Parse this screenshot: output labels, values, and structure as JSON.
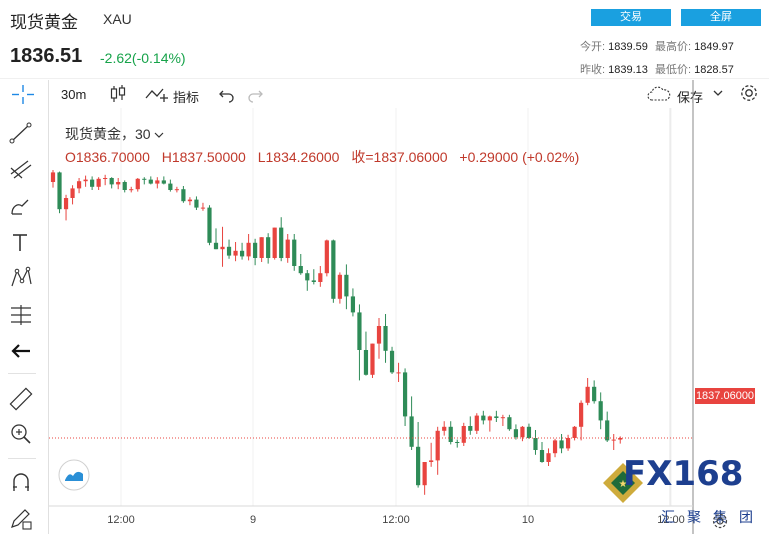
{
  "header": {
    "title": "现货黄金",
    "symbol": "XAU",
    "price": "1836.51",
    "change": "-2.62(-0.14%)",
    "trade_button": "交易",
    "fullscreen_button": "全屏",
    "stats": {
      "open_label": "今开:",
      "open": "1839.59",
      "high_label": "最高价:",
      "high": "1849.97",
      "prev_close_label": "昨收:",
      "prev_close": "1839.13",
      "low_label": "最低价:",
      "low": "1828.57"
    }
  },
  "toolbar": {
    "interval": "30m",
    "indicators_label": "指标",
    "save_label": "保存"
  },
  "sidebar": {
    "icons": [
      "crosshair-icon",
      "trend-line-icon",
      "fib-icon",
      "brush-icon",
      "text-icon",
      "pattern-icon",
      "measure-lines-icon",
      "back-arrow-icon",
      "ruler-icon",
      "zoom-icon",
      "magnet-icon",
      "pencil-lock-icon"
    ]
  },
  "chart_data": {
    "type": "candlestick",
    "title": "现货黄金，30",
    "ohlc": {
      "open": "O1836.70000",
      "high": "H1837.50000",
      "low": "L1834.26000",
      "close": "收=1837.06000",
      "change": "+0.29000 (+0.02%)"
    },
    "last_price_label": "1837.06000",
    "x_tick_labels": [
      "12:00",
      "9",
      "12:00",
      "10",
      "12:00"
    ],
    "colors": {
      "up": "#e8443f",
      "down": "#2e8b57",
      "last_line": "#e8443f"
    },
    "candles_rel": [
      [
        0.0,
        1.5,
        -0.7,
        1.2
      ],
      [
        1.2,
        1.3,
        -3.9,
        -3.4
      ],
      [
        -3.4,
        -1.6,
        -4.8,
        -2.0
      ],
      [
        -2.0,
        -0.4,
        -2.8,
        -0.8
      ],
      [
        -0.8,
        0.5,
        -1.4,
        0.1
      ],
      [
        0.1,
        0.8,
        -0.6,
        0.3
      ],
      [
        0.3,
        0.7,
        -1.0,
        -0.6
      ],
      [
        -0.6,
        0.6,
        -1.0,
        0.4
      ],
      [
        0.4,
        0.9,
        -0.4,
        0.5
      ],
      [
        0.5,
        0.6,
        -0.8,
        -0.3
      ],
      [
        -0.3,
        0.5,
        -0.9,
        0.0
      ],
      [
        0.0,
        0.2,
        -1.3,
        -1.0
      ],
      [
        -1.0,
        -0.6,
        -1.3,
        -0.9
      ],
      [
        -0.9,
        0.5,
        -1.2,
        0.4
      ],
      [
        0.4,
        0.6,
        -0.3,
        0.3
      ],
      [
        0.3,
        0.7,
        -0.3,
        -0.2
      ],
      [
        -0.2,
        0.6,
        -0.8,
        0.2
      ],
      [
        0.2,
        0.7,
        -0.3,
        -0.2
      ],
      [
        -0.2,
        0.3,
        -1.2,
        -1.0
      ],
      [
        -1.0,
        -0.6,
        -1.3,
        -0.9
      ],
      [
        -0.9,
        -0.5,
        -2.6,
        -2.4
      ],
      [
        -2.4,
        -1.9,
        -2.9,
        -2.2
      ],
      [
        -2.2,
        -1.8,
        -3.5,
        -3.2
      ],
      [
        -3.2,
        -2.6,
        -3.6,
        -3.2
      ],
      [
        -3.2,
        -2.9,
        -7.9,
        -7.6
      ],
      [
        -7.6,
        -5.8,
        -8.4,
        -8.4
      ],
      [
        -8.4,
        -5.6,
        -10.6,
        -8.1
      ],
      [
        -8.1,
        -7.2,
        -9.6,
        -9.2
      ],
      [
        -9.2,
        -7.5,
        -9.9,
        -8.6
      ],
      [
        -8.6,
        -7.6,
        -9.7,
        -9.3
      ],
      [
        -9.3,
        -6.5,
        -9.8,
        -7.6
      ],
      [
        -7.6,
        -7.1,
        -10.4,
        -9.5
      ],
      [
        -9.5,
        -6.9,
        -10.0,
        -6.9
      ],
      [
        -6.9,
        -6.4,
        -10.2,
        -9.5
      ],
      [
        -9.5,
        -5.7,
        -9.7,
        -5.7
      ],
      [
        -5.7,
        -4.4,
        -9.9,
        -9.5
      ],
      [
        -9.5,
        -6.5,
        -10.1,
        -7.2
      ],
      [
        -7.2,
        -6.5,
        -11.1,
        -10.5
      ],
      [
        -10.5,
        -9.0,
        -11.6,
        -11.4
      ],
      [
        -11.4,
        -11.0,
        -13.6,
        -12.3
      ],
      [
        -12.3,
        -10.9,
        -12.8,
        -12.5
      ],
      [
        -12.5,
        -10.5,
        -13.1,
        -11.4
      ],
      [
        -11.4,
        -7.2,
        -11.8,
        -7.3
      ],
      [
        -7.3,
        -7.2,
        -15.1,
        -14.6
      ],
      [
        -14.6,
        -11.3,
        -15.2,
        -11.6
      ],
      [
        -11.6,
        -10.3,
        -15.9,
        -14.3
      ],
      [
        -14.3,
        -13.3,
        -16.8,
        -16.3
      ],
      [
        -16.3,
        -15.3,
        -24.8,
        -21.0
      ],
      [
        -21.0,
        -18.7,
        -24.2,
        -24.1
      ],
      [
        -24.1,
        -20.2,
        -24.5,
        -20.2
      ],
      [
        -20.2,
        -17.0,
        -22.1,
        -18.0
      ],
      [
        -18.0,
        -16.5,
        -22.6,
        -21.1
      ],
      [
        -21.1,
        -20.6,
        -24.0,
        -23.8
      ],
      [
        -23.8,
        -22.6,
        -25.0,
        -23.8
      ],
      [
        -23.8,
        -23.3,
        -30.5,
        -29.3
      ],
      [
        -29.3,
        -26.8,
        -33.5,
        -33.1
      ],
      [
        -33.1,
        -30.0,
        -38.2,
        -37.9
      ],
      [
        -37.9,
        -35.0,
        -39.1,
        -35.0
      ],
      [
        -35.0,
        -32.6,
        -35.6,
        -34.8
      ],
      [
        -34.8,
        -30.6,
        -36.6,
        -31.1
      ],
      [
        -31.1,
        -29.9,
        -31.7,
        -30.6
      ],
      [
        -30.6,
        -29.9,
        -32.8,
        -32.5
      ],
      [
        -32.5,
        -32.2,
        -33.2,
        -32.6
      ],
      [
        -32.6,
        -30.1,
        -33.0,
        -30.5
      ],
      [
        -30.5,
        -29.3,
        -31.6,
        -31.1
      ],
      [
        -31.1,
        -28.9,
        -31.5,
        -29.2
      ],
      [
        -29.2,
        -28.6,
        -30.3,
        -29.8
      ],
      [
        -29.8,
        -29.2,
        -31.2,
        -29.3
      ],
      [
        -29.3,
        -28.6,
        -30.0,
        -29.5
      ],
      [
        -29.5,
        -29.1,
        -30.5,
        -29.4
      ],
      [
        -29.4,
        -29.1,
        -31.1,
        -30.9
      ],
      [
        -30.9,
        -30.3,
        -32.2,
        -31.9
      ],
      [
        -31.9,
        -30.5,
        -32.4,
        -30.6
      ],
      [
        -30.6,
        -30.2,
        -32.1,
        -32.0
      ],
      [
        -32.0,
        -31.0,
        -34.1,
        -33.5
      ],
      [
        -33.5,
        -32.5,
        -35.1,
        -35.0
      ],
      [
        -35.0,
        -33.3,
        -35.5,
        -33.9
      ],
      [
        -33.9,
        -32.1,
        -34.4,
        -32.3
      ],
      [
        -32.3,
        -31.5,
        -33.9,
        -33.3
      ],
      [
        -33.3,
        -31.6,
        -33.6,
        -32.0
      ],
      [
        -32.0,
        -30.5,
        -32.3,
        -30.6
      ],
      [
        -30.6,
        -27.3,
        -32.3,
        -27.6
      ],
      [
        -27.6,
        -24.5,
        -27.9,
        -25.6
      ],
      [
        -25.6,
        -24.8,
        -27.7,
        -27.4
      ],
      [
        -27.4,
        -26.3,
        -30.9,
        -29.8
      ],
      [
        -29.8,
        -28.7,
        -32.5,
        -32.3
      ],
      [
        -32.3,
        -31.5,
        -33.5,
        -32.2
      ],
      [
        -32.2,
        -31.8,
        -32.7,
        -32.0
      ]
    ]
  }
}
